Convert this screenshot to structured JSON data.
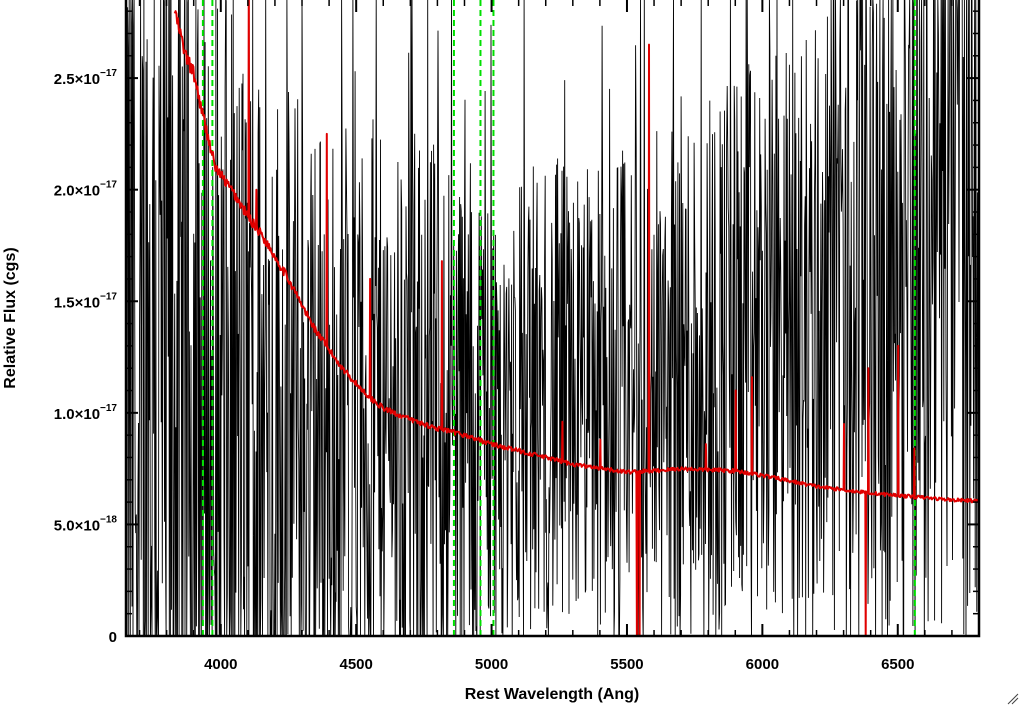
{
  "chart_data": {
    "type": "line",
    "title": "",
    "xlabel": "Rest Wavelength (Ang)",
    "ylabel": "Relative Flux (cgs)",
    "xlim": [
      3650,
      6800
    ],
    "ylim": [
      0,
      2.85e-17
    ],
    "grid": false,
    "x_ticks": [
      {
        "value": 4000,
        "label": "4000"
      },
      {
        "value": 4500,
        "label": "4500"
      },
      {
        "value": 5000,
        "label": "5000"
      },
      {
        "value": 5500,
        "label": "5500"
      },
      {
        "value": 6000,
        "label": "6000"
      },
      {
        "value": 6500,
        "label": "6500"
      }
    ],
    "y_ticks": [
      {
        "value": 0,
        "mantissa": "0",
        "exponent": ""
      },
      {
        "value": 5e-18,
        "mantissa": "5.0×10",
        "exponent": "−18"
      },
      {
        "value": 1e-17,
        "mantissa": "1.0×10",
        "exponent": "−17"
      },
      {
        "value": 1.5e-17,
        "mantissa": "1.5×10",
        "exponent": "−17"
      },
      {
        "value": 2e-17,
        "mantissa": "2.0×10",
        "exponent": "−17"
      },
      {
        "value": 2.5e-17,
        "mantissa": "2.5×10",
        "exponent": "−17"
      }
    ],
    "vertical_markers": {
      "color": "#00e000",
      "style": "dashed",
      "x": [
        3934,
        3969,
        4861,
        4959,
        5007,
        6563
      ]
    },
    "series": [
      {
        "role": "observed spectrum (noisy)",
        "color": "#000000",
        "noise_envelope": [
          [
            3650,
            2.4e-17
          ],
          [
            4200,
            1.6e-17
          ],
          [
            4500,
            1.2e-17
          ],
          [
            4800,
            1.2e-17
          ],
          [
            5000,
            1e-17
          ],
          [
            5300,
            1e-17
          ],
          [
            5500,
            1e-17
          ],
          [
            5800,
            1.2e-17
          ],
          [
            6100,
            1.2e-17
          ],
          [
            6300,
            1.4e-17
          ],
          [
            6500,
            1.7e-17
          ],
          [
            6800,
            2e-17
          ]
        ],
        "baseline": [
          [
            3650,
            1.1e-17
          ],
          [
            4000,
            8e-18
          ],
          [
            4500,
            9e-18
          ],
          [
            5000,
            1e-17
          ],
          [
            5500,
            1.1e-17
          ],
          [
            6000,
            1.3e-17
          ],
          [
            6400,
            1.6e-17
          ],
          [
            6800,
            2.2e-17
          ]
        ]
      },
      {
        "role": "model spectrum",
        "color": "#e00000",
        "points": [
          [
            3830,
            2.8e-17
          ],
          [
            3870,
            2.6e-17
          ],
          [
            3900,
            2.52e-17
          ],
          [
            3940,
            2.3e-17
          ],
          [
            3980,
            2.1e-17
          ],
          [
            4050,
            1.98e-17
          ],
          [
            4100,
            1.88e-17
          ],
          [
            4150,
            1.8e-17
          ],
          [
            4200,
            1.7e-17
          ],
          [
            4250,
            1.6e-17
          ],
          [
            4300,
            1.48e-17
          ],
          [
            4350,
            1.37e-17
          ],
          [
            4400,
            1.28e-17
          ],
          [
            4450,
            1.2e-17
          ],
          [
            4500,
            1.13e-17
          ],
          [
            4550,
            1.07e-17
          ],
          [
            4600,
            1.02e-17
          ],
          [
            4700,
            9.7e-18
          ],
          [
            4800,
            9.3e-18
          ],
          [
            4900,
            9e-18
          ],
          [
            5000,
            8.6e-18
          ],
          [
            5100,
            8.3e-18
          ],
          [
            5200,
            8e-18
          ],
          [
            5300,
            7.7e-18
          ],
          [
            5400,
            7.5e-18
          ],
          [
            5500,
            7.35e-18
          ],
          [
            5600,
            7.4e-18
          ],
          [
            5700,
            7.5e-18
          ],
          [
            5800,
            7.45e-18
          ],
          [
            5900,
            7.4e-18
          ],
          [
            6000,
            7.2e-18
          ],
          [
            6100,
            6.95e-18
          ],
          [
            6200,
            6.7e-18
          ],
          [
            6300,
            6.55e-18
          ],
          [
            6400,
            6.4e-18
          ],
          [
            6500,
            6.3e-18
          ],
          [
            6600,
            6.2e-18
          ],
          [
            6700,
            6.1e-18
          ],
          [
            6800,
            6.05e-18
          ]
        ],
        "lines": [
          [
            4102,
            3e-17
          ],
          [
            4130,
            2e-17
          ],
          [
            4340,
            1.4e-17
          ],
          [
            4390,
            2.25e-17
          ],
          [
            4550,
            1.6e-17
          ],
          [
            4815,
            1.68e-17
          ],
          [
            5260,
            9.6e-18
          ],
          [
            5400,
            8.8e-18
          ],
          [
            5580,
            2.65e-17
          ],
          [
            5790,
            8.6e-18
          ],
          [
            5900,
            1.1e-17
          ],
          [
            5960,
            1.16e-17
          ],
          [
            6300,
            9.5e-18
          ],
          [
            6390,
            1.2e-17
          ],
          [
            6500,
            1.3e-17
          ],
          [
            6560,
            8.4e-18
          ]
        ],
        "absorption": [
          [
            5535,
            0
          ],
          [
            5545,
            0
          ],
          [
            6380,
            0
          ]
        ]
      }
    ]
  }
}
